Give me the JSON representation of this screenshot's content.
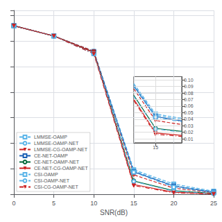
{
  "chart_data": [
    {
      "type": "line",
      "x_label": "SNR(dB)",
      "x": [
        0,
        5,
        10,
        15,
        20,
        25
      ],
      "xlim": [
        0,
        25
      ],
      "xticks": [
        0,
        5,
        10,
        15,
        20,
        25
      ],
      "ylim": [
        0.0,
        0.36
      ],
      "yticks": [
        0,
        0.05,
        0.1,
        0.15,
        0.2,
        0.25,
        0.3,
        0.35
      ],
      "tick_labels": "x",
      "grid": true,
      "legend": "lower left",
      "series": [
        {
          "name": "LMMSE-OAMP",
          "color": "#5ab4e8",
          "line_style": "dashed",
          "marker": "open_square",
          "values": [
            0.33,
            0.31,
            0.28,
            0.048,
            0.02,
            0.006
          ]
        },
        {
          "name": "LMMSE-OAMP-NET",
          "color": "#5ab4e8",
          "line_style": "dashed",
          "marker": "open_circle",
          "values": [
            0.33,
            0.31,
            0.28,
            0.046,
            0.017,
            0.005
          ]
        },
        {
          "name": "LMMSE-CG-OAMP-NET",
          "color": "#cc2222",
          "line_style": "dashed",
          "marker": "triangle_down",
          "values": [
            0.33,
            0.31,
            0.28,
            0.038,
            0.012,
            0.003
          ]
        },
        {
          "name": "CE-NET-OAMP",
          "color": "#1a5fb4",
          "line_style": "solid",
          "marker": "open_square",
          "values": [
            0.33,
            0.31,
            0.278,
            0.044,
            0.016,
            0.004
          ]
        },
        {
          "name": "CE-NET-OAMP-NET",
          "color": "#006838",
          "line_style": "solid",
          "marker": "open_circle",
          "values": [
            0.33,
            0.31,
            0.278,
            0.026,
            0.007,
            0.0015
          ]
        },
        {
          "name": "CE-NET-CG-OAMP-NET",
          "color": "#cc2222",
          "line_style": "solid",
          "marker": "triangle_down",
          "values": [
            0.33,
            0.31,
            0.278,
            0.019,
            0.004,
            0.0009
          ]
        },
        {
          "name": "CSI-OAMP",
          "color": "#5ab4e8",
          "line_style": "dashdot",
          "marker": "open_square",
          "values": [
            0.33,
            0.31,
            0.275,
            0.043,
            0.014,
            0.003
          ]
        },
        {
          "name": "CSI-OAMP-NET",
          "color": "#5ab4e8",
          "line_style": "dashdot",
          "marker": "open_circle",
          "values": [
            0.33,
            0.31,
            0.275,
            0.025,
            0.006,
            0.0012
          ]
        },
        {
          "name": "CSI-CG-OAMP-NET",
          "color": "#cc2222",
          "line_style": "dashdot",
          "marker": "triangle_down",
          "values": [
            0.33,
            0.31,
            0.275,
            0.017,
            0.003,
            0.0005
          ]
        }
      ]
    },
    {
      "type": "line",
      "xlim": [
        14.0,
        16.2
      ],
      "xticks": [
        15
      ],
      "ylim": [
        0.004,
        0.105
      ],
      "yticks": [
        0.01,
        0.02,
        0.03,
        0.04,
        0.05,
        0.06,
        0.07,
        0.08,
        0.09,
        {
          "value": 0.1,
          "label": "0.10"
        }
      ],
      "grid": true,
      "series": [
        {
          "type": "scatter",
          "color": "#5ab4e8",
          "marker": "open_square",
          "x": [
            15
          ],
          "values": [
            0.048
          ]
        },
        {
          "type": "scatter",
          "color": "#5ab4e8",
          "marker": "open_circle",
          "x": [
            15
          ],
          "values": [
            0.046
          ]
        },
        {
          "type": "scatter",
          "color": "#cc2222",
          "marker": "triangle_down",
          "x": [
            15
          ],
          "values": [
            0.038
          ]
        },
        {
          "type": "scatter",
          "color": "#1a5fb4",
          "marker": "open_square",
          "x": [
            15
          ],
          "values": [
            0.044
          ]
        },
        {
          "type": "scatter",
          "color": "#006838",
          "marker": "open_circle",
          "x": [
            15
          ],
          "values": [
            0.026
          ]
        },
        {
          "type": "scatter",
          "color": "#cc2222",
          "marker": "triangle_down",
          "x": [
            15
          ],
          "values": [
            0.019
          ]
        },
        {
          "type": "scatter",
          "color": "#5ab4e8",
          "marker": "open_square",
          "x": [
            15
          ],
          "values": [
            0.043
          ]
        },
        {
          "type": "scatter",
          "color": "#5ab4e8",
          "marker": "open_circle",
          "x": [
            15
          ],
          "values": [
            0.025
          ]
        },
        {
          "type": "scatter",
          "color": "#cc2222",
          "marker": "triangle_down",
          "x": [
            15
          ],
          "values": [
            0.017
          ]
        },
        {
          "type": "line",
          "color": "#5ab4e8",
          "line_style": "dashed",
          "marker": "none",
          "x": [
            14.0,
            15.0,
            16.2
          ],
          "values": [
            0.0944,
            0.048,
            0.04128
          ]
        },
        {
          "type": "line",
          "color": "#5ab4e8",
          "line_style": "dashed",
          "marker": "none",
          "x": [
            14.0,
            15.0,
            16.2
          ],
          "values": [
            0.0928,
            0.046,
            0.03904
          ]
        },
        {
          "type": "line",
          "color": "#cc2222",
          "line_style": "dashed",
          "marker": "none",
          "x": [
            14.0,
            15.0,
            16.2
          ],
          "values": [
            0.0864,
            0.038,
            0.03176
          ]
        },
        {
          "type": "line",
          "color": "#1a5fb4",
          "line_style": "solid",
          "marker": "none",
          "x": [
            14.0,
            15.0,
            16.2
          ],
          "values": [
            0.0908,
            0.044,
            0.03728
          ]
        },
        {
          "type": "line",
          "color": "#006838",
          "line_style": "solid",
          "marker": "none",
          "x": [
            14.0,
            15.0,
            16.2
          ],
          "values": [
            0.0764,
            0.026,
            0.02144
          ]
        },
        {
          "type": "line",
          "color": "#cc2222",
          "line_style": "solid",
          "marker": "none",
          "x": [
            14.0,
            15.0,
            16.2
          ],
          "values": [
            0.0708,
            0.019,
            0.0154
          ]
        },
        {
          "type": "line",
          "color": "#5ab4e8",
          "line_style": "dashdot",
          "marker": "none",
          "x": [
            14.0,
            15.0,
            16.2
          ],
          "values": [
            0.0894,
            0.043,
            0.03604
          ]
        },
        {
          "type": "line",
          "color": "#5ab4e8",
          "line_style": "dashdot",
          "marker": "none",
          "x": [
            14.0,
            15.0,
            16.2
          ],
          "values": [
            0.075,
            0.025,
            0.02044
          ]
        },
        {
          "type": "line",
          "color": "#cc2222",
          "line_style": "dashdot",
          "marker": "none",
          "x": [
            14.0,
            15.0,
            16.2
          ],
          "values": [
            0.0686,
            0.017,
            0.01364
          ]
        }
      ]
    }
  ]
}
